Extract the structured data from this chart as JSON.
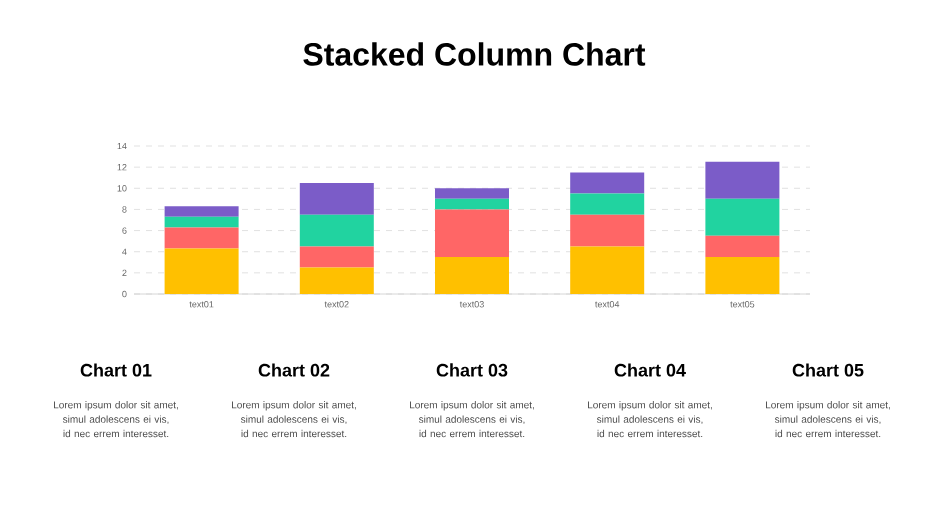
{
  "chart_data": {
    "type": "bar",
    "title": "Stacked Column Chart",
    "stacked": true,
    "categories": [
      "text01",
      "text02",
      "text03",
      "text04",
      "text05"
    ],
    "series": [
      {
        "color": "#ffc000",
        "values": [
          4.3,
          2.5,
          3.5,
          4.5,
          3.5
        ]
      },
      {
        "color": "#ff6666",
        "values": [
          2.0,
          2.0,
          4.5,
          3.0,
          2.0
        ]
      },
      {
        "color": "#21d3a0",
        "values": [
          1.0,
          3.0,
          1.0,
          2.0,
          3.5
        ]
      },
      {
        "color": "#7b5cc8",
        "values": [
          1.0,
          3.0,
          1.0,
          2.0,
          3.5
        ]
      }
    ],
    "ylim": [
      0,
      14
    ],
    "yticks": [
      0,
      2,
      4,
      6,
      8,
      10,
      12,
      14
    ],
    "grid": "y",
    "annotations": [
      "Chart 01",
      "Lorem ipsum dolor sit amet, simul adolescens ei vis, id nec errem interesset.",
      "Chart 02",
      "Lorem ipsum dolor sit amet, simul adolescens ei vis, id nec errem interesset.",
      "Chart 03",
      "Lorem ipsum dolor sit amet, simul adolescens ei vis, id nec errem interesset.",
      "Chart 04",
      "Lorem ipsum dolor sit amet, simul adolescens ei vis, id nec errem interesset.",
      "Chart 05",
      "Lorem ipsum dolor sit amet, simul adolescens ei vis, id nec errem interesset."
    ]
  }
}
